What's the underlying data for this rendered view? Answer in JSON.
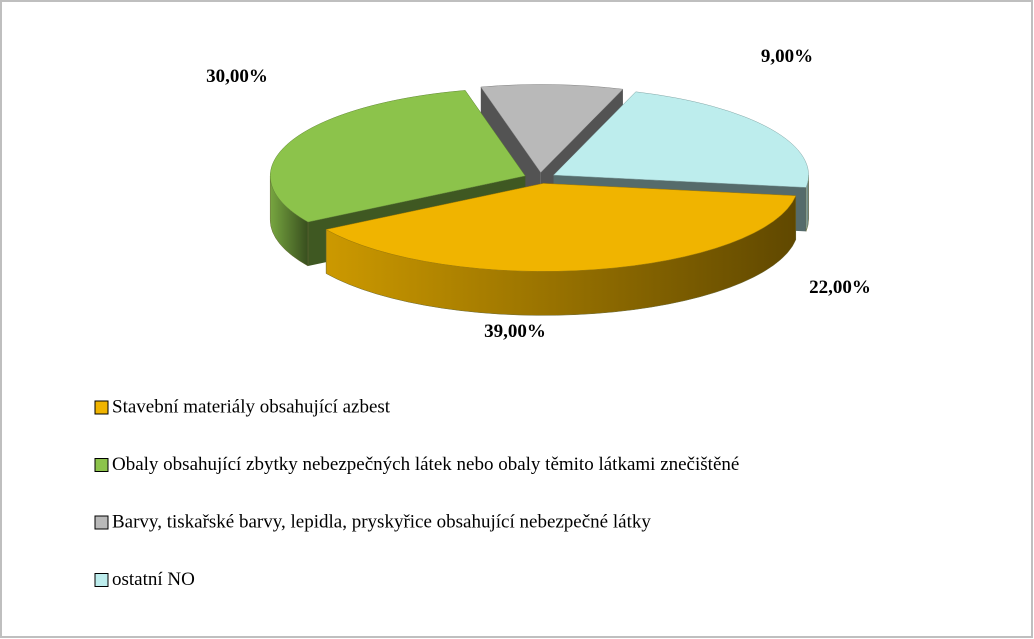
{
  "chart_data": {
    "type": "pie",
    "categories": [
      "Stavební materiály obsahující azbest",
      "Obaly obsahující zbytky nebezpečných látek nebo obaly těmito látkami znečištěné",
      "Barvy, tiskařské barvy, lepidla, pryskyřice obsahující nebezpečné látky",
      "ostatní NO"
    ],
    "values": [
      39,
      30,
      9,
      22
    ],
    "value_labels": [
      "39,00%",
      "30,00%",
      "9,00%",
      "22,00%"
    ],
    "colors": [
      "#f0b400",
      "#8cc34b",
      "#b9b9b9",
      "#bdeded"
    ],
    "legend": "bottom"
  }
}
